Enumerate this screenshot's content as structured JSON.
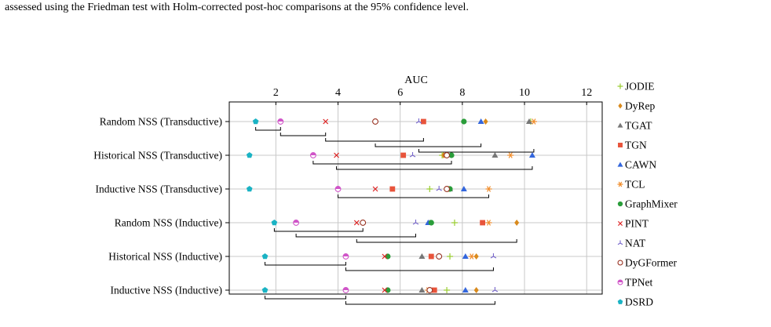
{
  "caption_top": "assessed using the Friedman test with Holm-corrected post-hoc comparisons at the 95% confidence level.",
  "chart_data": {
    "type": "scatter",
    "title": "AUC",
    "xlim": [
      0.5,
      12.5
    ],
    "xticks": [
      2,
      4,
      6,
      8,
      10,
      12
    ],
    "grid": true,
    "legend_position": "right",
    "rows": [
      "Random NSS (Transductive)",
      "Historical NSS (Transductive)",
      "Inductive NSS (Transductive)",
      "Random NSS (Inductive)",
      "Historical NSS (Inductive)",
      "Inductive NSS (Inductive)"
    ],
    "series": [
      {
        "name": "JODIE",
        "marker": "plus",
        "color": "#9acd32",
        "values": [
          10.2,
          7.35,
          6.95,
          7.75,
          7.6,
          7.5
        ]
      },
      {
        "name": "DyRep",
        "marker": "diamond",
        "color": "#d98a1c",
        "values": [
          8.75,
          7.4,
          7.55,
          9.75,
          8.45,
          8.45
        ]
      },
      {
        "name": "TGAT",
        "marker": "triangle",
        "color": "#777777",
        "values": [
          10.15,
          9.05,
          7.6,
          6.95,
          6.7,
          6.7
        ]
      },
      {
        "name": "TGN",
        "marker": "square",
        "color": "#e8543b",
        "values": [
          6.75,
          6.1,
          5.75,
          8.65,
          7.0,
          7.1
        ]
      },
      {
        "name": "CAWN",
        "marker": "triangle",
        "color": "#3366dd",
        "values": [
          8.6,
          10.25,
          8.05,
          6.9,
          8.1,
          8.1
        ]
      },
      {
        "name": "TCL",
        "marker": "star",
        "color": "#f08c2a",
        "values": [
          10.3,
          9.55,
          8.85,
          8.85,
          8.3,
          6.9
        ]
      },
      {
        "name": "GraphMixer",
        "marker": "circle",
        "color": "#2a9d3a",
        "values": [
          8.05,
          7.65,
          7.6,
          7.0,
          5.6,
          5.6
        ]
      },
      {
        "name": "PINT",
        "marker": "x",
        "color": "#dd2222",
        "values": [
          3.6,
          3.95,
          5.2,
          4.6,
          5.5,
          5.5
        ]
      },
      {
        "name": "NAT",
        "marker": "tri",
        "color": "#7766cc",
        "values": [
          6.6,
          6.4,
          7.25,
          6.5,
          9.0,
          9.05
        ]
      },
      {
        "name": "DyGFormer",
        "marker": "circle-open",
        "color": "#993322",
        "values": [
          5.2,
          7.5,
          7.5,
          4.8,
          7.25,
          6.95
        ]
      },
      {
        "name": "TPNet",
        "marker": "half-circle",
        "color": "#d055c8",
        "values": [
          2.15,
          3.2,
          4.0,
          2.65,
          4.25,
          4.25
        ]
      },
      {
        "name": "DSRD",
        "marker": "pentagon",
        "color": "#1ab3c4",
        "values": [
          1.35,
          1.15,
          1.15,
          1.95,
          1.65,
          1.65
        ]
      }
    ],
    "cliques": [
      [
        [
          1.35,
          2.15
        ],
        [
          2.15,
          3.6
        ],
        [
          3.6,
          6.75
        ],
        [
          5.2,
          8.6
        ],
        [
          6.6,
          10.3
        ]
      ],
      [
        [
          3.2,
          7.65
        ],
        [
          3.95,
          10.25
        ]
      ],
      [
        [
          4.0,
          8.85
        ]
      ],
      [
        [
          1.95,
          4.8
        ],
        [
          2.65,
          6.5
        ],
        [
          4.6,
          9.75
        ]
      ],
      [
        [
          1.65,
          4.25
        ],
        [
          4.25,
          9.0
        ]
      ],
      [
        [
          1.65,
          4.25
        ],
        [
          4.25,
          9.05
        ]
      ]
    ]
  }
}
